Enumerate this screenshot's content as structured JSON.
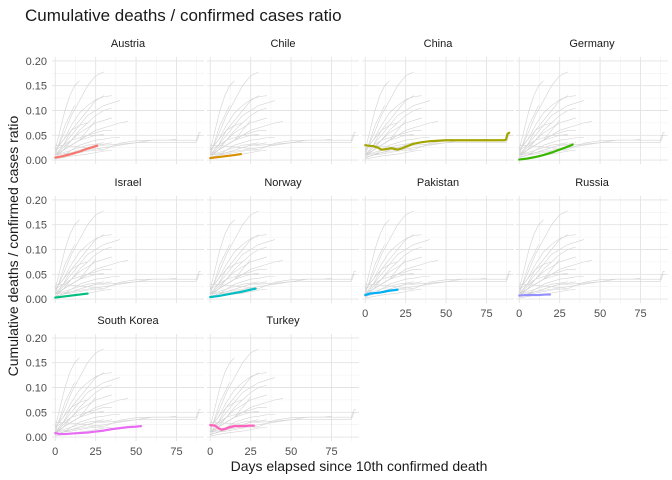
{
  "chart_data": {
    "type": "line",
    "title": "Cumulative deaths / confirmed cases ratio",
    "xlabel": "Days elapsed since 10th confirmed death",
    "ylabel": "Cumulative deaths / confirmed cases ratio",
    "xlim": [
      -2,
      92
    ],
    "ylim": [
      -0.008,
      0.208
    ],
    "x_ticks": [
      0,
      25,
      50,
      75
    ],
    "x_tick_labels": [
      "0",
      "25",
      "50",
      "75"
    ],
    "y_ticks": [
      0.0,
      0.05,
      0.1,
      0.15,
      0.2
    ],
    "y_tick_labels": [
      "0.00",
      "0.05",
      "0.10",
      "0.15",
      "0.20"
    ],
    "grid": true,
    "legend": "none",
    "background_series_color": "#d3d3d3",
    "background_series": [
      {
        "x": [
          0,
          10,
          20,
          30,
          40,
          50,
          60,
          70,
          80,
          88,
          89,
          90
        ],
        "y": [
          0.03,
          0.028,
          0.025,
          0.021,
          0.034,
          0.039,
          0.04,
          0.04,
          0.04,
          0.04,
          0.056,
          0.056
        ]
      },
      {
        "x": [
          0,
          5,
          10,
          15,
          20,
          25,
          30
        ],
        "y": [
          0.015,
          0.05,
          0.09,
          0.12,
          0.15,
          0.17,
          0.178
        ]
      },
      {
        "x": [
          0,
          5,
          10,
          15,
          20,
          25,
          30,
          35
        ],
        "y": [
          0.02,
          0.04,
          0.07,
          0.095,
          0.11,
          0.122,
          0.128,
          0.13
        ]
      },
      {
        "x": [
          0,
          5,
          10,
          15,
          20,
          25,
          30
        ],
        "y": [
          0.01,
          0.03,
          0.06,
          0.08,
          0.1,
          0.12,
          0.13
        ]
      },
      {
        "x": [
          0,
          5,
          10,
          15,
          20,
          25,
          30,
          35,
          40
        ],
        "y": [
          0.01,
          0.03,
          0.05,
          0.07,
          0.09,
          0.1,
          0.11,
          0.115,
          0.12
        ]
      },
      {
        "x": [
          0,
          5,
          10,
          15,
          20,
          25,
          30,
          35
        ],
        "y": [
          0.005,
          0.02,
          0.04,
          0.06,
          0.075,
          0.09,
          0.1,
          0.105
        ]
      },
      {
        "x": [
          0,
          3,
          6,
          9,
          12
        ],
        "y": [
          0.01,
          0.04,
          0.07,
          0.09,
          0.11
        ]
      },
      {
        "x": [
          0,
          5,
          10,
          15,
          20,
          25,
          30,
          35
        ],
        "y": [
          0.01,
          0.025,
          0.04,
          0.055,
          0.065,
          0.075,
          0.08,
          0.085
        ]
      },
      {
        "x": [
          0,
          5,
          10,
          15,
          20,
          25,
          30,
          35,
          40,
          45
        ],
        "y": [
          0.01,
          0.02,
          0.03,
          0.04,
          0.05,
          0.06,
          0.065,
          0.07,
          0.075,
          0.078
        ]
      },
      {
        "x": [
          0,
          5,
          10,
          15,
          20,
          25,
          30,
          35
        ],
        "y": [
          0.01,
          0.02,
          0.03,
          0.04,
          0.05,
          0.055,
          0.06,
          0.06
        ]
      },
      {
        "x": [
          0,
          5,
          10,
          15,
          20,
          25,
          30
        ],
        "y": [
          0.01,
          0.02,
          0.03,
          0.04,
          0.045,
          0.05,
          0.05
        ]
      },
      {
        "x": [
          0,
          5,
          10,
          15,
          20,
          25,
          30,
          35,
          40
        ],
        "y": [
          0.01,
          0.015,
          0.02,
          0.03,
          0.035,
          0.04,
          0.042,
          0.045,
          0.045
        ]
      },
      {
        "x": [
          0,
          5,
          10,
          15,
          20,
          25,
          30
        ],
        "y": [
          0.02,
          0.03,
          0.04,
          0.045,
          0.05,
          0.05,
          0.052
        ]
      },
      {
        "x": [
          0,
          5,
          10,
          15,
          20,
          25,
          30,
          35
        ],
        "y": [
          0.005,
          0.01,
          0.015,
          0.02,
          0.025,
          0.03,
          0.032,
          0.035
        ]
      },
      {
        "x": [
          0,
          5,
          10,
          15,
          20,
          25,
          30
        ],
        "y": [
          0.005,
          0.01,
          0.02,
          0.025,
          0.03,
          0.032,
          0.035
        ]
      },
      {
        "x": [
          0,
          5,
          10,
          15,
          20,
          25,
          30,
          40,
          50,
          60,
          70,
          80,
          87,
          88,
          90
        ],
        "y": [
          0.005,
          0.01,
          0.015,
          0.02,
          0.025,
          0.03,
          0.03,
          0.032,
          0.035,
          0.035,
          0.035,
          0.035,
          0.035,
          0.05,
          0.05
        ]
      },
      {
        "x": [
          0,
          10,
          20,
          30,
          40,
          50,
          60,
          70,
          75
        ],
        "y": [
          0.01,
          0.015,
          0.02,
          0.025,
          0.03,
          0.035,
          0.04,
          0.04,
          0.042
        ]
      },
      {
        "x": [
          0,
          5,
          10,
          15,
          20,
          25,
          30
        ],
        "y": [
          0.005,
          0.01,
          0.012,
          0.015,
          0.018,
          0.02,
          0.02
        ]
      },
      {
        "x": [
          0,
          5,
          10,
          15,
          20,
          25
        ],
        "y": [
          0.01,
          0.02,
          0.03,
          0.04,
          0.06,
          0.08
        ]
      },
      {
        "x": [
          0,
          3,
          6,
          9,
          12,
          15
        ],
        "y": [
          0.02,
          0.06,
          0.1,
          0.13,
          0.15,
          0.16
        ]
      },
      {
        "x": [
          0,
          5,
          10,
          15,
          20
        ],
        "y": [
          0.02,
          0.04,
          0.06,
          0.07,
          0.075
        ]
      },
      {
        "x": [
          0,
          5,
          10,
          15,
          20,
          25,
          30,
          35
        ],
        "y": [
          0.002,
          0.005,
          0.008,
          0.01,
          0.012,
          0.015,
          0.018,
          0.02
        ]
      }
    ],
    "panels": [
      {
        "name": "Austria",
        "color": "#F8766D",
        "x": [
          0,
          5,
          10,
          15,
          20,
          26
        ],
        "y": [
          0.005,
          0.008,
          0.012,
          0.017,
          0.023,
          0.029
        ]
      },
      {
        "name": "Chile",
        "color": "#D89000",
        "x": [
          0,
          5,
          10,
          15,
          19
        ],
        "y": [
          0.004,
          0.006,
          0.008,
          0.01,
          0.012
        ]
      },
      {
        "name": "China",
        "color": "#A3A500",
        "x": [
          0,
          2,
          5,
          8,
          10,
          13,
          16,
          20,
          23,
          26,
          30,
          35,
          40,
          45,
          50,
          55,
          60,
          65,
          70,
          75,
          80,
          84,
          86,
          87,
          88,
          89
        ],
        "y": [
          0.03,
          0.029,
          0.028,
          0.025,
          0.021,
          0.022,
          0.024,
          0.021,
          0.024,
          0.028,
          0.033,
          0.036,
          0.038,
          0.039,
          0.04,
          0.04,
          0.04,
          0.04,
          0.04,
          0.04,
          0.04,
          0.04,
          0.04,
          0.041,
          0.053,
          0.055
        ]
      },
      {
        "name": "Germany",
        "color": "#39B600",
        "x": [
          0,
          5,
          10,
          15,
          20,
          25,
          30,
          33
        ],
        "y": [
          0.001,
          0.003,
          0.006,
          0.01,
          0.015,
          0.021,
          0.027,
          0.031
        ]
      },
      {
        "name": "Israel",
        "color": "#00BF7D",
        "x": [
          0,
          5,
          10,
          15,
          20
        ],
        "y": [
          0.003,
          0.005,
          0.007,
          0.009,
          0.011
        ]
      },
      {
        "name": "Norway",
        "color": "#00BFC4",
        "x": [
          0,
          5,
          10,
          15,
          20,
          25,
          28
        ],
        "y": [
          0.004,
          0.006,
          0.009,
          0.012,
          0.015,
          0.019,
          0.021
        ]
      },
      {
        "name": "Pakistan",
        "color": "#00B0F6",
        "x": [
          0,
          3,
          6,
          9,
          12,
          15,
          18,
          20
        ],
        "y": [
          0.008,
          0.011,
          0.012,
          0.013,
          0.015,
          0.017,
          0.018,
          0.019
        ]
      },
      {
        "name": "Russia",
        "color": "#9590FF",
        "x": [
          0,
          4,
          8,
          12,
          16,
          19
        ],
        "y": [
          0.007,
          0.008,
          0.008,
          0.008,
          0.009,
          0.009
        ]
      },
      {
        "name": "South Korea",
        "color": "#E76BF3",
        "x": [
          0,
          3,
          6,
          10,
          15,
          20,
          25,
          30,
          35,
          40,
          45,
          50,
          53
        ],
        "y": [
          0.008,
          0.006,
          0.006,
          0.007,
          0.008,
          0.009,
          0.011,
          0.013,
          0.016,
          0.018,
          0.02,
          0.021,
          0.022
        ]
      },
      {
        "name": "Turkey",
        "color": "#FF62BC",
        "x": [
          0,
          3,
          5,
          7,
          9,
          12,
          15,
          18,
          21,
          24,
          27
        ],
        "y": [
          0.024,
          0.023,
          0.018,
          0.015,
          0.016,
          0.02,
          0.022,
          0.022,
          0.022,
          0.023,
          0.023
        ]
      }
    ]
  }
}
